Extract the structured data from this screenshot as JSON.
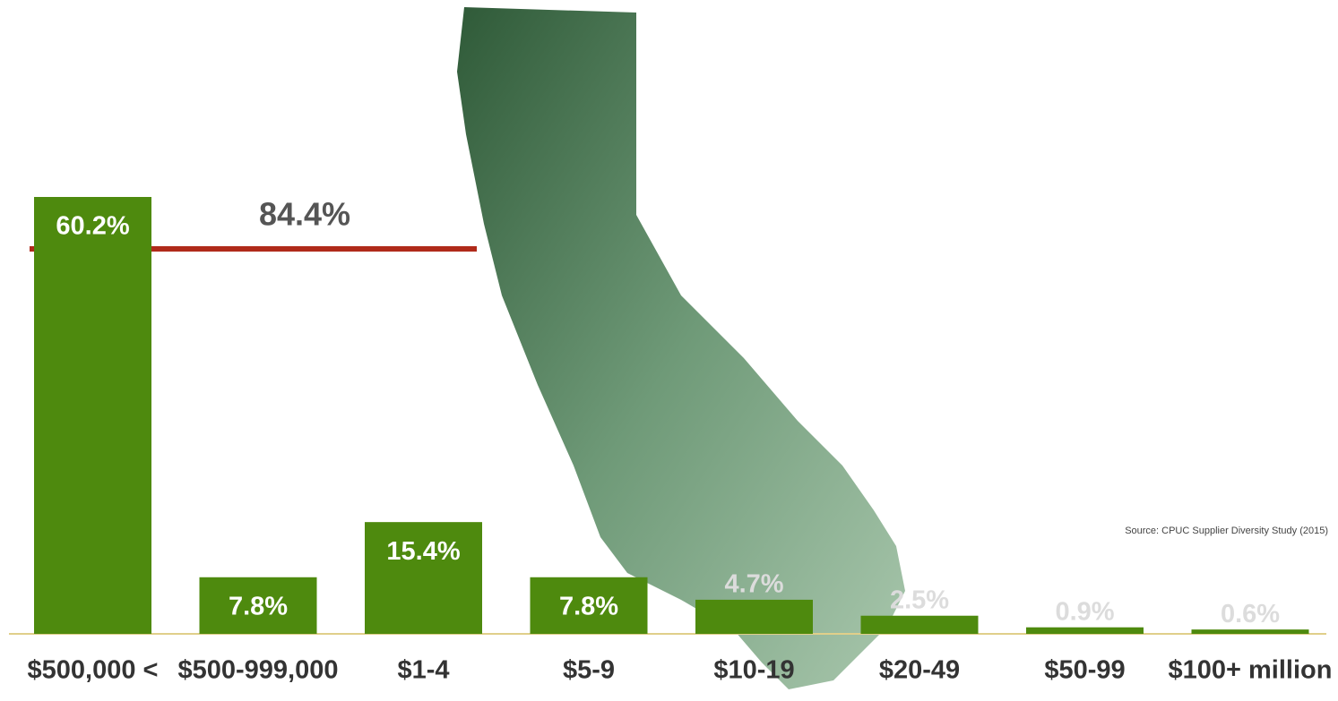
{
  "chart_data": {
    "type": "bar",
    "categories": [
      "$500,000 <",
      "$500-999,000",
      "$1-4",
      "$5-9",
      "$10-19",
      "$20-49",
      "$50-99",
      "$100+ million"
    ],
    "values": [
      60.2,
      7.8,
      15.4,
      7.8,
      4.7,
      2.5,
      0.9,
      0.6
    ],
    "value_labels": [
      "60.2%",
      "7.8%",
      "15.4%",
      "7.8%",
      "4.7%",
      "2.5%",
      "0.9%",
      "0.6%"
    ],
    "color": "#4e8a0e",
    "annotation": "84.4%",
    "source": "Source: CPUC Supplier Diversity Study (2015)"
  }
}
